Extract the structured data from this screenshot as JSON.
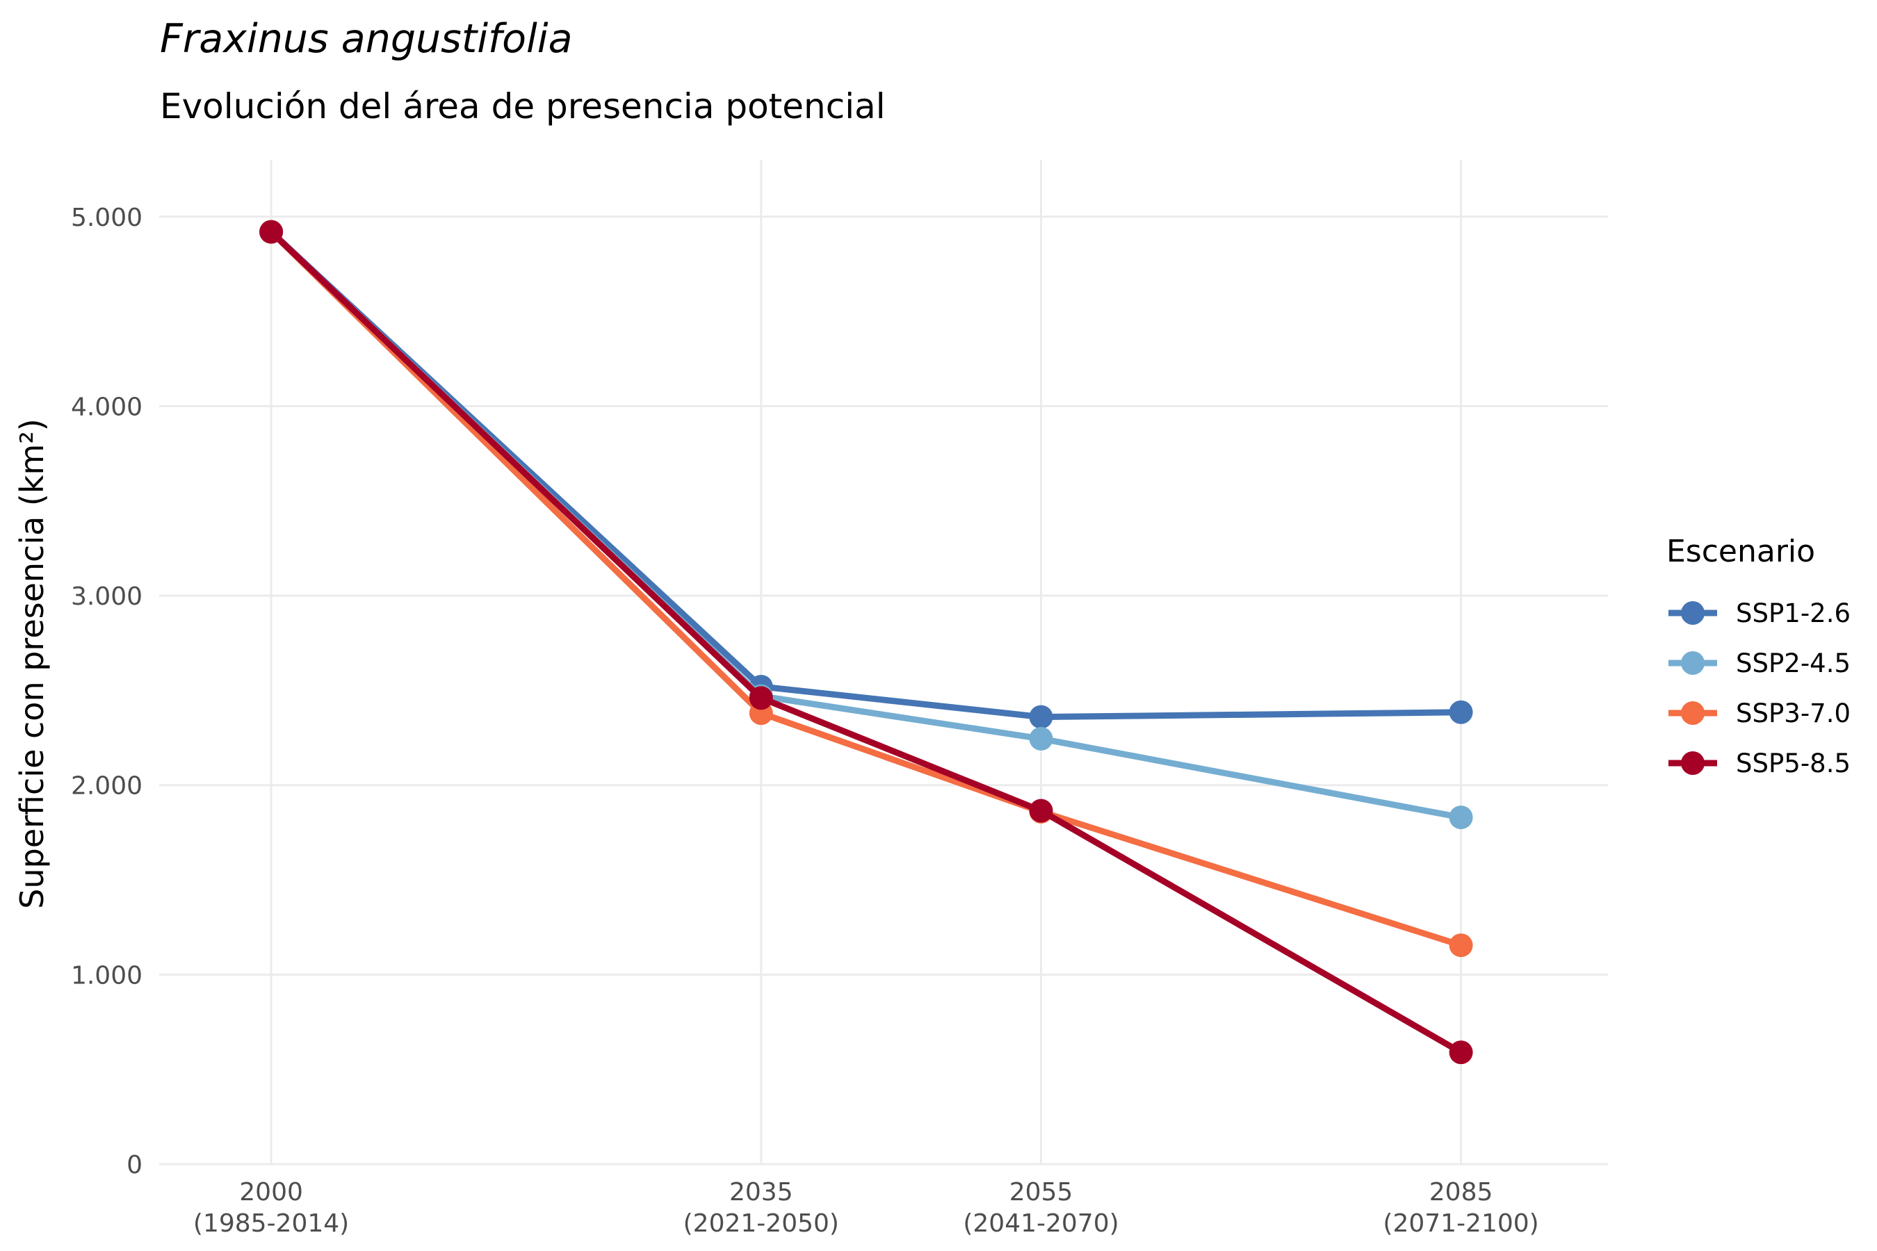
{
  "chart_data": {
    "type": "line",
    "title": "Fraxinus angustifolia",
    "subtitle": "Evolución del área de presencia potencial",
    "xlabel": "",
    "ylabel": "Superficie con presencia (km²)",
    "x": [
      2000,
      2035,
      2055,
      2085
    ],
    "x_tick_labels": [
      [
        "2000",
        "(1985-2014)"
      ],
      [
        "2035",
        "(2021-2050)"
      ],
      [
        "2055",
        "(2041-2070)"
      ],
      [
        "2085",
        "(2071-2100)"
      ]
    ],
    "xlim": [
      1992,
      2095.5
    ],
    "ylim": [
      0,
      5300
    ],
    "y_ticks": [
      0,
      1000,
      2000,
      3000,
      4000,
      5000
    ],
    "y_tick_labels": [
      "0",
      "1.000",
      "2.000",
      "3.000",
      "4.000",
      "5.000"
    ],
    "grid": true,
    "legend": {
      "title": "Escenario",
      "placement": "right"
    },
    "series": [
      {
        "name": "SSP1-2.6",
        "color": "#4575b4",
        "values": [
          4920,
          2520,
          2360,
          2385
        ]
      },
      {
        "name": "SSP2-4.5",
        "color": "#74add1",
        "values": [
          4920,
          2470,
          2245,
          1830
        ]
      },
      {
        "name": "SSP3-7.0",
        "color": "#f46d43",
        "values": [
          4920,
          2380,
          1860,
          1155
        ]
      },
      {
        "name": "SSP5-8.5",
        "color": "#a50026",
        "values": [
          4920,
          2460,
          1865,
          590
        ]
      }
    ]
  }
}
